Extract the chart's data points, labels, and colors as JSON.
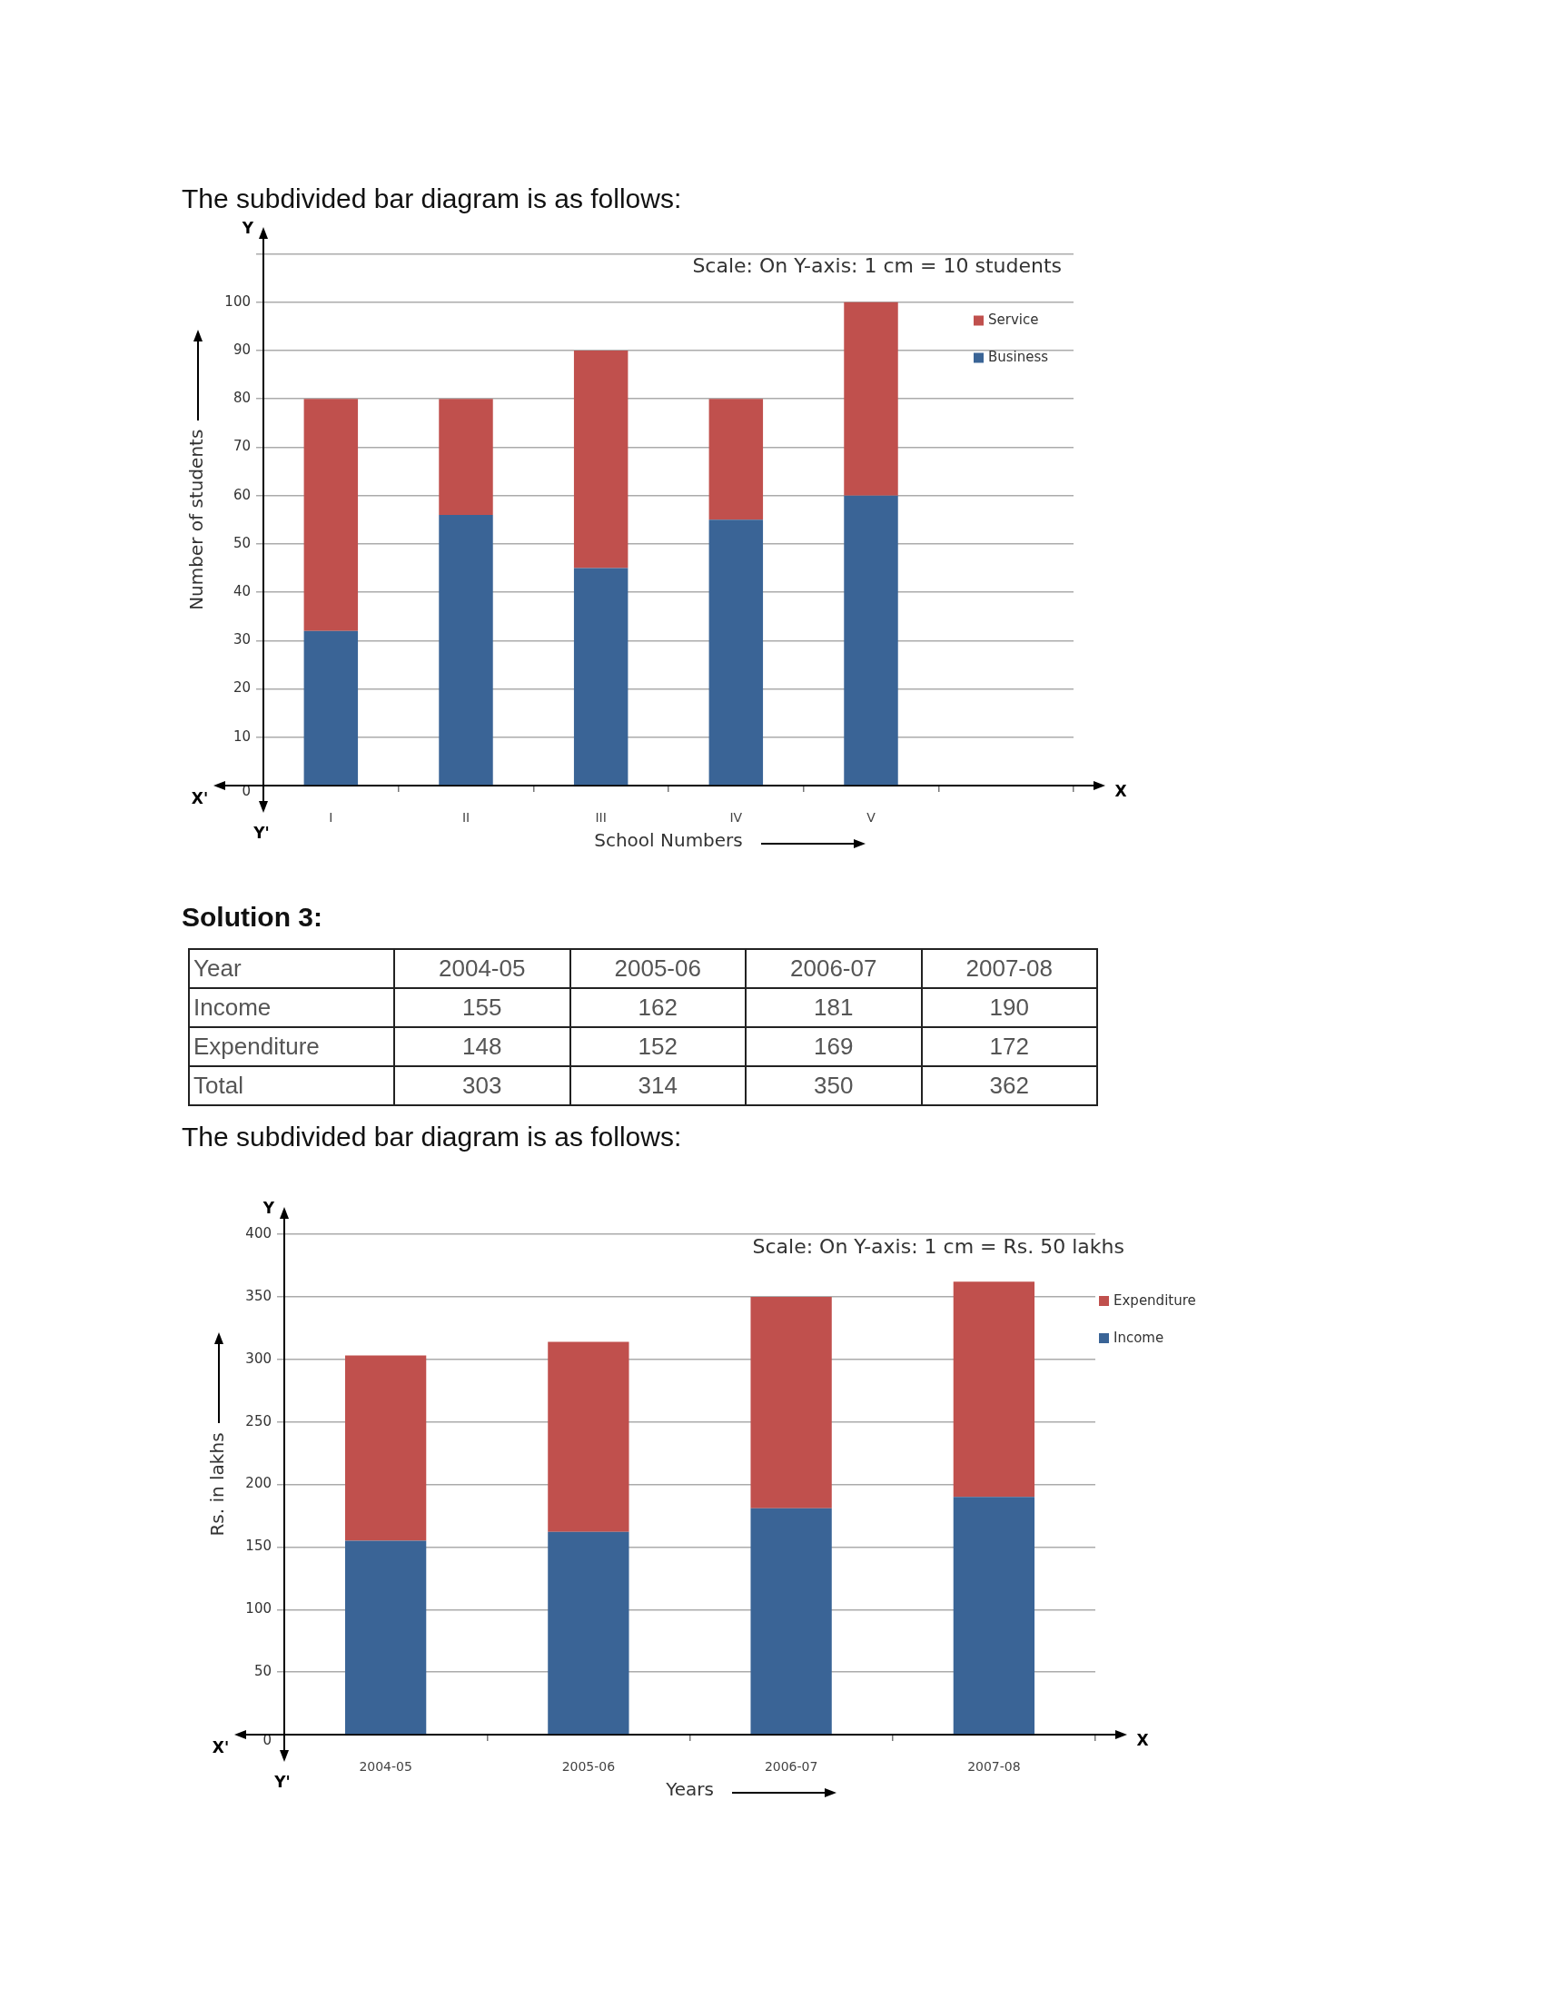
{
  "chart_data": [
    {
      "type": "bar",
      "title": "The subdivided bar diagram is as follows:",
      "xlabel": "School Numbers",
      "ylabel": "Number of students",
      "annotations": [
        "Scale: On Y-axis: 1 cm = 10 students",
        "Y",
        "Y'",
        "X'",
        "X"
      ],
      "categories": [
        "I",
        "II",
        "III",
        "IV",
        "V",
        null
      ],
      "series": [
        {
          "name": "Business",
          "color": "#3a6496",
          "values": [
            32,
            56,
            45,
            55,
            60,
            null
          ]
        },
        {
          "name": "Service",
          "color": "#c0504d",
          "values": [
            48,
            24,
            45,
            25,
            40,
            null
          ]
        }
      ],
      "stacked": true,
      "ylim": [
        0,
        110
      ],
      "yticks": [
        0,
        10,
        20,
        30,
        40,
        50,
        60,
        70,
        80,
        90,
        100,
        {
          "value": 110,
          "label": null
        }
      ],
      "grid": "y",
      "legend": "top right"
    },
    {
      "type": "bar",
      "title": "Solution 3:",
      "subtitle": "The subdivided bar diagram is as follows:",
      "xlabel": "Years",
      "ylabel": "Rs. in lakhs",
      "annotations": [
        "Year",
        "Total",
        "303",
        "314",
        "350",
        "362",
        "Scale: On Y-axis: 1 cm = Rs. 50 lakhs",
        "Y",
        "Y'",
        "X'",
        "X"
      ],
      "categories": [
        "2004-05",
        "2005-06",
        "2006-07",
        "2007-08"
      ],
      "series": [
        {
          "name": "Income",
          "color": "#3a6496",
          "values": [
            155,
            162,
            181,
            190
          ]
        },
        {
          "name": "Expenditure",
          "color": "#c0504d",
          "values": [
            148,
            152,
            169,
            172
          ]
        }
      ],
      "stacked": true,
      "data_labels": true,
      "ylim": [
        0,
        400
      ],
      "yticks": [
        0,
        50,
        100,
        150,
        200,
        250,
        300,
        350,
        400
      ],
      "grid": "y",
      "legend": "right"
    }
  ]
}
